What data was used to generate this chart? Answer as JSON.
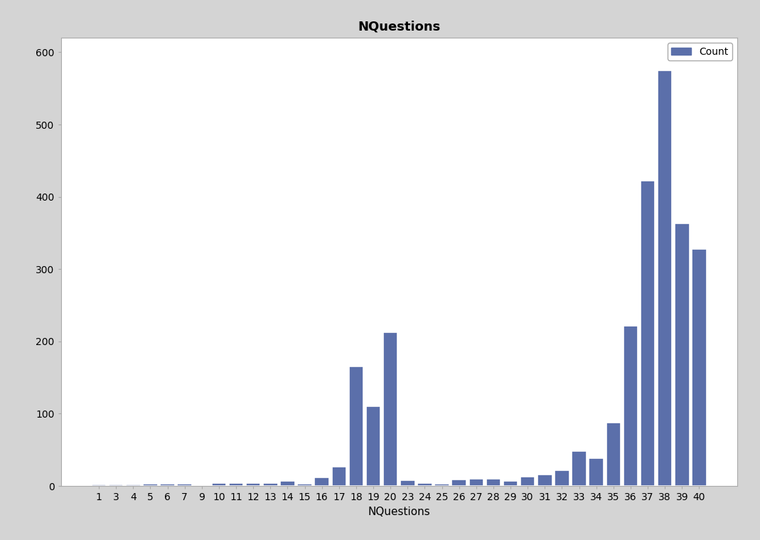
{
  "categories": [
    "1",
    "3",
    "4",
    "5",
    "6",
    "7",
    "9",
    "10",
    "11",
    "12",
    "13",
    "14",
    "15",
    "16",
    "17",
    "18",
    "19",
    "20",
    "23",
    "24",
    "25",
    "26",
    "27",
    "28",
    "29",
    "30",
    "31",
    "32",
    "33",
    "34",
    "35",
    "36",
    "37",
    "38",
    "39",
    "40"
  ],
  "values": [
    2,
    2,
    2,
    3,
    3,
    3,
    1,
    4,
    4,
    4,
    4,
    7,
    3,
    12,
    27,
    165,
    110,
    213,
    8,
    4,
    3,
    9,
    10,
    10,
    7,
    13,
    16,
    22,
    48,
    38,
    88,
    222,
    422,
    575,
    363,
    328
  ],
  "bar_color": "#5b6faa",
  "title": "NQuestions",
  "xlabel": "NQuestions",
  "ylabel": "",
  "ylim": [
    0,
    620
  ],
  "yticks": [
    0,
    100,
    200,
    300,
    400,
    500,
    600
  ],
  "legend_label": "Count",
  "outer_background_color": "#d4d4d4",
  "plot_background_color": "#ffffff",
  "title_fontsize": 13,
  "axis_fontsize": 11,
  "tick_fontsize": 10
}
